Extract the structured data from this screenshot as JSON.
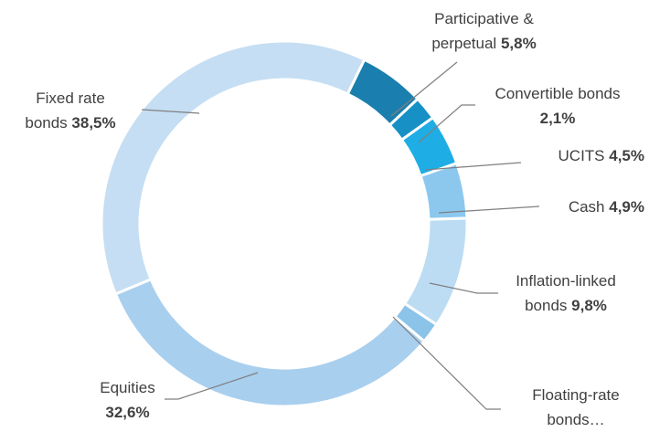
{
  "chart_data": {
    "type": "donut",
    "categories": [
      "Participative & perpetual",
      "Convertible bonds",
      "UCITS",
      "Cash",
      "Inflation-linked bonds",
      "Floating-rate bonds…",
      "Equities",
      "Fixed rate bonds"
    ],
    "values": [
      5.8,
      2.1,
      4.5,
      4.9,
      9.8,
      1.8,
      32.6,
      38.5
    ],
    "value_labels": [
      "5,8%",
      "2,1%",
      "4,5%",
      "4,9%",
      "9,8%",
      null,
      "32,6%",
      "38,5%"
    ],
    "colors": [
      "#1a7fae",
      "#1690c5",
      "#1fade6",
      "#8cc8ee",
      "#bcdcf3",
      "#8cc3e8",
      "#a9cfee",
      "#c5def3"
    ]
  }
}
